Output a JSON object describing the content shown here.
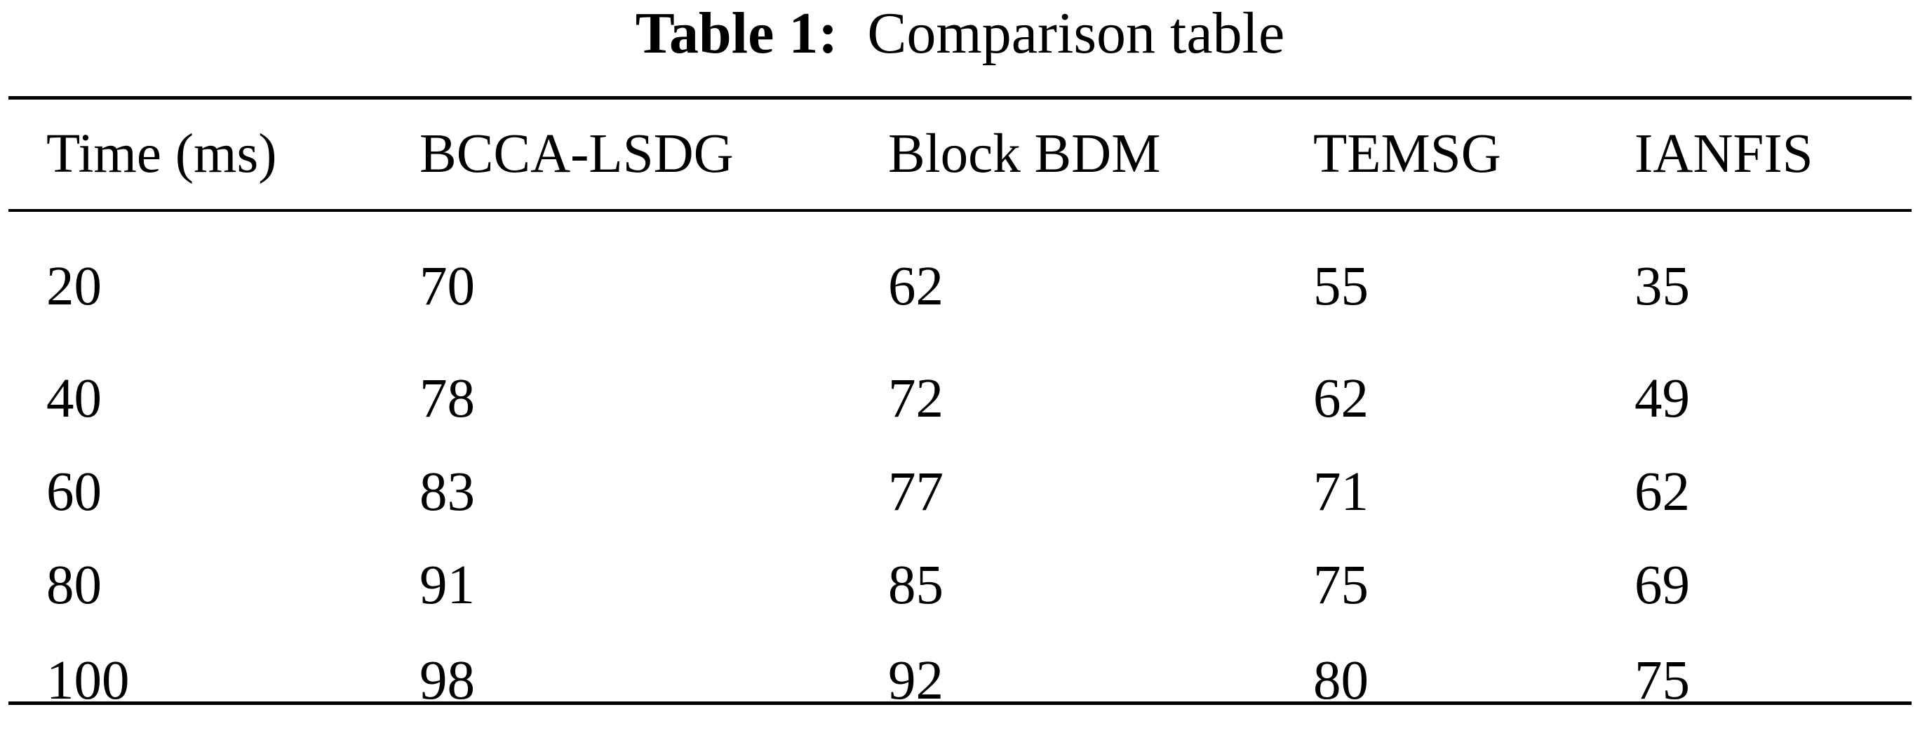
{
  "caption": {
    "label": "Table 1:",
    "text": "Comparison table"
  },
  "table": {
    "headers": [
      "Time (ms)",
      "BCCA-LSDG",
      "Block BDM",
      "TEMSG",
      "IANFIS"
    ],
    "rows": [
      [
        "20",
        "70",
        "62",
        "55",
        "35"
      ],
      [
        "40",
        "78",
        "72",
        "62",
        "49"
      ],
      [
        "60",
        "83",
        "77",
        "71",
        "62"
      ],
      [
        "80",
        "91",
        "85",
        "75",
        "69"
      ],
      [
        "100",
        "98",
        "92",
        "80",
        "75"
      ]
    ]
  }
}
